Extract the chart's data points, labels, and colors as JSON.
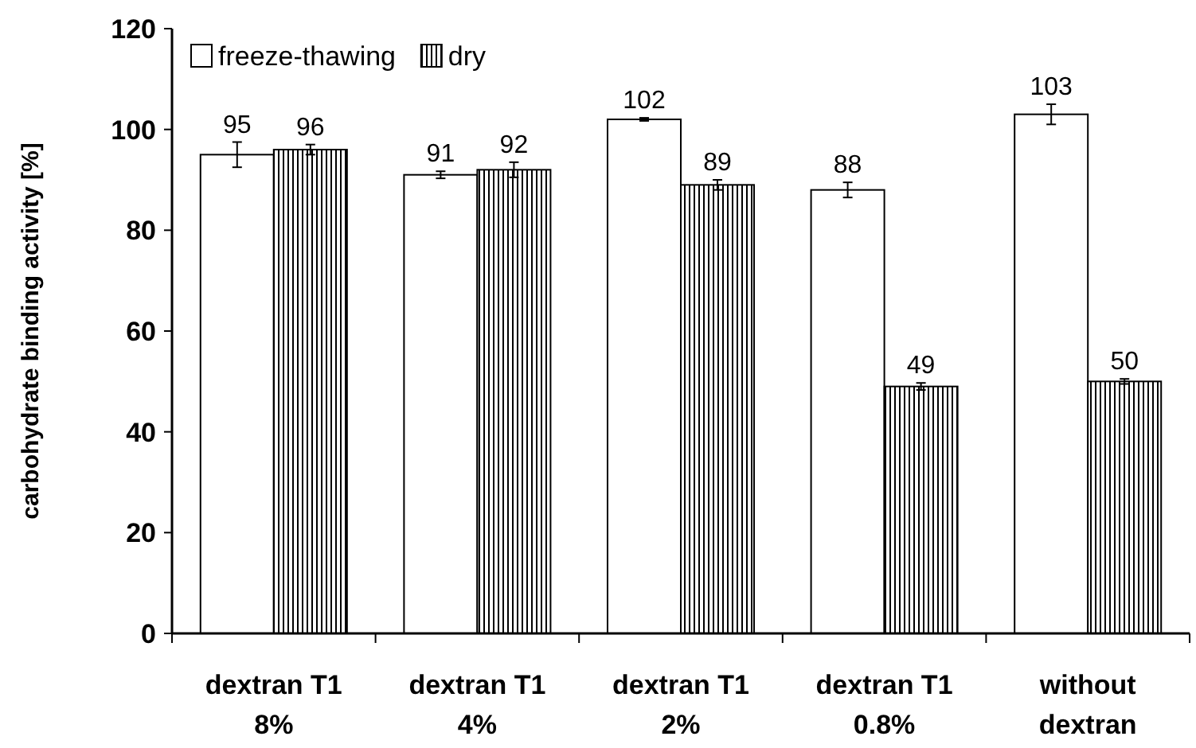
{
  "chart_data": {
    "type": "bar",
    "ylabel": "carbohydrate binding activity [%]",
    "categories": [
      "dextran T1\n8%",
      "dextran T1\n4%",
      "dextran T1\n2%",
      "dextran T1\n0.8%",
      "without\ndextran"
    ],
    "series": [
      {
        "name": "freeze-thawing",
        "color": "#ffffff",
        "values": [
          95,
          91,
          102,
          88,
          103
        ],
        "errors": [
          2.5,
          0.7,
          0.3,
          1.5,
          2
        ]
      },
      {
        "name": "dry",
        "color": "#000000",
        "values": [
          96,
          92,
          89,
          49,
          50
        ],
        "errors": [
          1,
          1.5,
          1,
          0.7,
          0.5
        ]
      }
    ],
    "ylim": [
      0,
      120
    ],
    "yticks": [
      0,
      20,
      40,
      60,
      80,
      100,
      120
    ],
    "data_labels": true,
    "grid": false,
    "legend": "top left"
  }
}
